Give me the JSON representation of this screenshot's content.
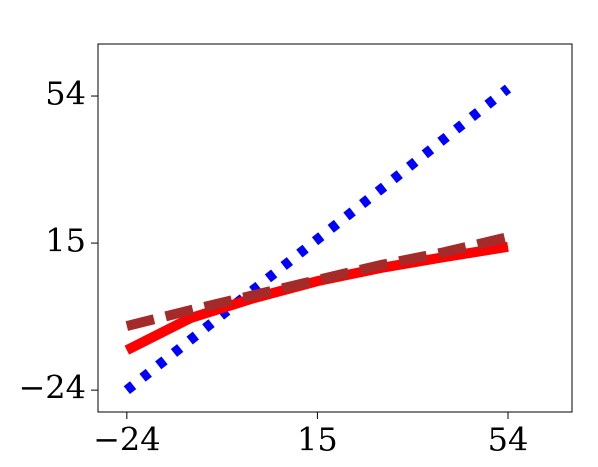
{
  "chart_data": {
    "type": "line",
    "x": [
      -24,
      -11,
      2,
      15,
      28,
      41,
      54
    ],
    "series": [
      {
        "color": "#0000ff",
        "style": "dotted",
        "values": [
          -24,
          -10.7,
          2.7,
          16,
          29.3,
          42.7,
          56
        ]
      },
      {
        "color": "#ff0000",
        "style": "solid",
        "values": [
          -13.4,
          -4.9,
          0.4,
          4.9,
          8.4,
          11.3,
          14
        ]
      },
      {
        "color": "#a52a2a",
        "style": "dashed",
        "values": [
          -7,
          -2.8,
          1.2,
          5.2,
          9.2,
          12.6,
          16.6
        ]
      }
    ],
    "xlim": [
      -29.9,
      67.1
    ],
    "ylim": [
      -29.8,
      67.8
    ],
    "xticks": [
      {
        "value": -24,
        "label": "−24"
      },
      15,
      54
    ],
    "yticks": [
      {
        "value": -24,
        "label": "−24"
      },
      15,
      54
    ]
  }
}
